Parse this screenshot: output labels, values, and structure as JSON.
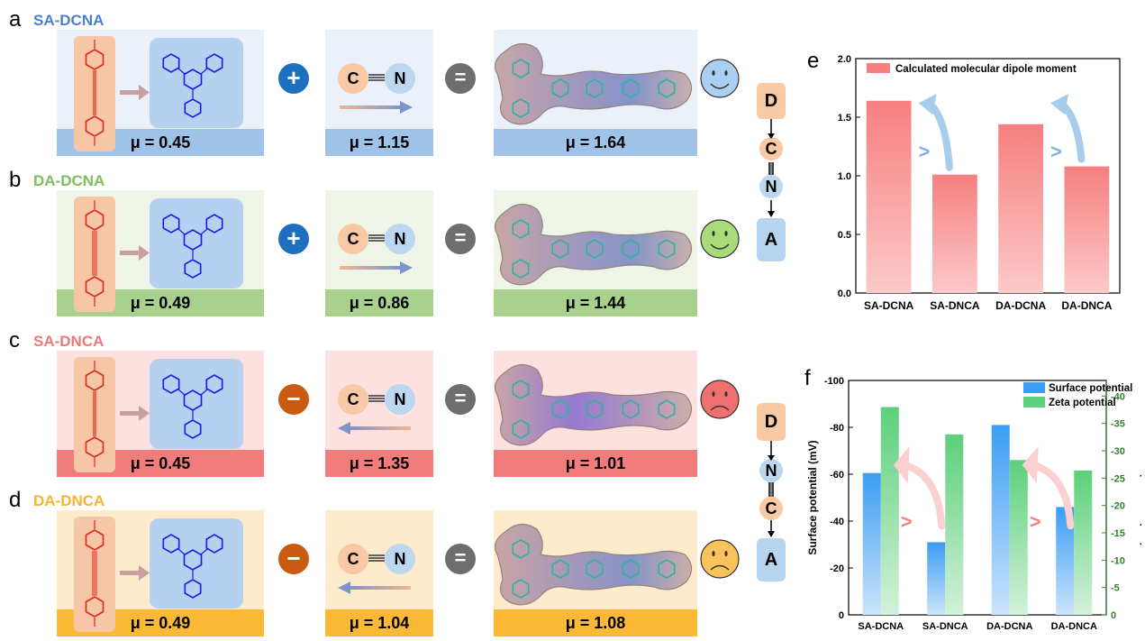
{
  "panels": [
    {
      "letter": "a",
      "title": "SA-DCNA",
      "title_color": "#4a7fd6",
      "bg": "#eaf1fb",
      "bar": "#9fc2e8",
      "op": "+",
      "op_color": "#1f6fbf",
      "arrow_dir": "right",
      "mu_left": "μ = 0.45",
      "mu_mid": "μ = 1.15",
      "mu_right": "μ = 1.64",
      "face": "smile",
      "face_color": "#a9d0f0",
      "triple": false
    },
    {
      "letter": "b",
      "title": "DA-DCNA",
      "title_color": "#7cbf5c",
      "bg": "#eef5e8",
      "bar": "#a9d18e",
      "op": "+",
      "op_color": "#1f6fbf",
      "arrow_dir": "right",
      "mu_left": "μ = 0.49",
      "mu_mid": "μ = 0.86",
      "mu_right": "μ = 1.44",
      "face": "smile",
      "face_color": "#a9db7a",
      "triple": true
    },
    {
      "letter": "c",
      "title": "SA-DNCA",
      "title_color": "#f07878",
      "bg": "#fde0e0",
      "bar": "#f27c7c",
      "op": "−",
      "op_color": "#c85a12",
      "arrow_dir": "left",
      "mu_left": "μ = 0.45",
      "mu_mid": "μ = 1.35",
      "mu_right": "μ = 1.01",
      "face": "frown",
      "face_color": "#f07070",
      "triple": false
    },
    {
      "letter": "d",
      "title": "DA-DNCA",
      "title_color": "#f5b530",
      "bg": "#fdebcc",
      "bar": "#fbb935",
      "op": "−",
      "op_color": "#c85a12",
      "arrow_dir": "left",
      "mu_left": "μ = 0.49",
      "mu_mid": "μ = 1.04",
      "mu_right": "μ = 1.08",
      "face": "frown",
      "face_color": "#f9c25a",
      "triple": true
    }
  ],
  "atoms": {
    "c": "C",
    "n": "N",
    "d": "D",
    "a": "A"
  },
  "chain_top": [
    "D",
    "C",
    "N",
    "A"
  ],
  "chain_bottom": [
    "D",
    "N",
    "C",
    "A"
  ],
  "chart_data": [
    {
      "panel": "e",
      "type": "bar",
      "categories": [
        "SA-DCNA",
        "SA-DNCA",
        "DA-DCNA",
        "DA-DNCA"
      ],
      "series": [
        {
          "name": "Calculated molecular dipole moment",
          "values": [
            1.64,
            1.01,
            1.44,
            1.08
          ],
          "color": "#f77f7f"
        }
      ],
      "ylim": [
        0,
        2.0
      ],
      "yticks": [
        "0.0",
        "0.5",
        "1.0",
        "1.5",
        "2.0"
      ],
      "ytick_values": [
        0,
        0.5,
        1.0,
        1.5,
        2.0
      ],
      "annotations": [
        ">",
        ">"
      ],
      "legend_position": "top"
    },
    {
      "panel": "f",
      "type": "bar",
      "categories": [
        "SA-DCNA",
        "SA-DNCA",
        "DA-DCNA",
        "DA-DNCA"
      ],
      "series": [
        {
          "name": "Surface potential",
          "values": [
            -60.5,
            -31,
            -81,
            -46
          ],
          "color": "#3b9df5",
          "axis": "left"
        },
        {
          "name": "Zeta potential",
          "values": [
            -38,
            -33,
            -28.3,
            -26.4
          ],
          "color": "#5cd07a",
          "axis": "right"
        }
      ],
      "ylabel": "Surface potential (mV)",
      "ylabel_right": "Zeta potential (mV)",
      "ylim": [
        0,
        -100
      ],
      "ylim_right": [
        0,
        -42.86
      ],
      "yticks": [
        "0",
        "-20",
        "-40",
        "-60",
        "-80",
        "-100"
      ],
      "ytick_values": [
        0,
        -20,
        -40,
        -60,
        -80,
        -100
      ],
      "yticks_right": [
        "0",
        "-5",
        "-10",
        "-15",
        "-20",
        "-25",
        "-30",
        "-35",
        "-40"
      ],
      "ytick_values_right": [
        0,
        -5,
        -10,
        -15,
        -20,
        -25,
        -30,
        -35,
        -40
      ],
      "annotations": [
        ">",
        ">"
      ],
      "legend_position": "top-right"
    }
  ]
}
